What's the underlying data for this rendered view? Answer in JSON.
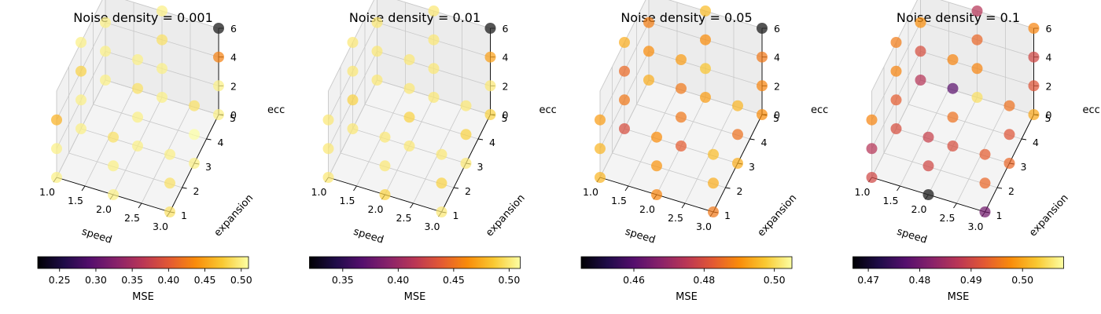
{
  "chart_data": [
    {
      "type": "scatter3d",
      "title": "Noise density = 0.001",
      "xlabel": "speed",
      "ylabel": "expansion",
      "zlabel": "ecc",
      "xlim": [
        1.0,
        3.0
      ],
      "ylim": [
        1,
        5
      ],
      "zlim": [
        0,
        6
      ],
      "x_ticks": [
        "1.0",
        "1.5",
        "2.0",
        "2.5",
        "3.0"
      ],
      "y_ticks": [
        "1",
        "2",
        "3",
        "4",
        "5"
      ],
      "z_ticks": [
        "0",
        "2",
        "4",
        "6"
      ],
      "colorbar": {
        "label": "MSE",
        "min": 0.22,
        "max": 0.51,
        "ticks": [
          "0.25",
          "0.30",
          "0.35",
          "0.40",
          "0.45",
          "0.50"
        ]
      },
      "points": [
        {
          "x": 1.0,
          "y": 1,
          "z": 0,
          "mse": 0.5
        },
        {
          "x": 1.0,
          "y": 1,
          "z": 2,
          "mse": 0.5
        },
        {
          "x": 1.0,
          "y": 1,
          "z": 4,
          "mse": 0.46
        },
        {
          "x": 1.0,
          "y": 3,
          "z": 0,
          "mse": 0.5
        },
        {
          "x": 1.0,
          "y": 3,
          "z": 2,
          "mse": 0.5
        },
        {
          "x": 1.0,
          "y": 3,
          "z": 4,
          "mse": 0.48
        },
        {
          "x": 1.0,
          "y": 3,
          "z": 6,
          "mse": 0.5
        },
        {
          "x": 1.0,
          "y": 5,
          "z": 0,
          "mse": 0.5
        },
        {
          "x": 1.0,
          "y": 5,
          "z": 2,
          "mse": 0.5
        },
        {
          "x": 1.0,
          "y": 5,
          "z": 4,
          "mse": 0.5
        },
        {
          "x": 1.0,
          "y": 5,
          "z": 6,
          "mse": 0.5
        },
        {
          "x": 2.0,
          "y": 1,
          "z": 0,
          "mse": 0.5
        },
        {
          "x": 2.0,
          "y": 1,
          "z": 2,
          "mse": 0.5
        },
        {
          "x": 2.0,
          "y": 1,
          "z": 4,
          "mse": 0.49
        },
        {
          "x": 2.0,
          "y": 3,
          "z": 0,
          "mse": 0.5
        },
        {
          "x": 2.0,
          "y": 3,
          "z": 2,
          "mse": 0.5
        },
        {
          "x": 2.0,
          "y": 3,
          "z": 4,
          "mse": 0.49
        },
        {
          "x": 2.0,
          "y": 3,
          "z": 6,
          "mse": 0.5
        },
        {
          "x": 2.0,
          "y": 5,
          "z": 0,
          "mse": 0.5
        },
        {
          "x": 2.0,
          "y": 5,
          "z": 2,
          "mse": 0.5
        },
        {
          "x": 2.0,
          "y": 5,
          "z": 4,
          "mse": 0.49
        },
        {
          "x": 2.0,
          "y": 5,
          "z": 6,
          "mse": 0.5
        },
        {
          "x": 3.0,
          "y": 1,
          "z": 0,
          "mse": 0.49
        },
        {
          "x": 3.0,
          "y": 1,
          "z": 2,
          "mse": 0.49
        },
        {
          "x": 3.0,
          "y": 1,
          "z": 4,
          "mse": 0.5
        },
        {
          "x": 3.0,
          "y": 3,
          "z": 0,
          "mse": 0.5
        },
        {
          "x": 3.0,
          "y": 3,
          "z": 2,
          "mse": 0.51
        },
        {
          "x": 3.0,
          "y": 3,
          "z": 4,
          "mse": 0.49
        },
        {
          "x": 3.0,
          "y": 5,
          "z": 0,
          "mse": 0.5
        },
        {
          "x": 3.0,
          "y": 5,
          "z": 2,
          "mse": 0.5
        },
        {
          "x": 3.0,
          "y": 5,
          "z": 4,
          "mse": 0.43
        },
        {
          "x": 3.0,
          "y": 5,
          "z": 6,
          "mse": 0.22
        }
      ]
    },
    {
      "type": "scatter3d",
      "title": "Noise density = 0.01",
      "xlabel": "speed",
      "ylabel": "expansion",
      "zlabel": "ecc",
      "xlim": [
        1.0,
        3.0
      ],
      "ylim": [
        1,
        5
      ],
      "zlim": [
        0,
        6
      ],
      "x_ticks": [
        "1.0",
        "1.5",
        "2.0",
        "2.5",
        "3.0"
      ],
      "y_ticks": [
        "1",
        "2",
        "3",
        "4",
        "5"
      ],
      "z_ticks": [
        "0",
        "2",
        "4",
        "6"
      ],
      "colorbar": {
        "label": "MSE",
        "min": 0.32,
        "max": 0.51,
        "ticks": [
          "0.35",
          "0.40",
          "0.45",
          "0.50"
        ]
      },
      "points": [
        {
          "x": 1.0,
          "y": 1,
          "z": 0,
          "mse": 0.5
        },
        {
          "x": 1.0,
          "y": 1,
          "z": 2,
          "mse": 0.5
        },
        {
          "x": 1.0,
          "y": 1,
          "z": 4,
          "mse": 0.5
        },
        {
          "x": 1.0,
          "y": 3,
          "z": 0,
          "mse": 0.5
        },
        {
          "x": 1.0,
          "y": 3,
          "z": 2,
          "mse": 0.49
        },
        {
          "x": 1.0,
          "y": 3,
          "z": 4,
          "mse": 0.5
        },
        {
          "x": 1.0,
          "y": 3,
          "z": 6,
          "mse": 0.5
        },
        {
          "x": 1.0,
          "y": 5,
          "z": 0,
          "mse": 0.5
        },
        {
          "x": 1.0,
          "y": 5,
          "z": 2,
          "mse": 0.5
        },
        {
          "x": 1.0,
          "y": 5,
          "z": 4,
          "mse": 0.5
        },
        {
          "x": 1.0,
          "y": 5,
          "z": 6,
          "mse": 0.5
        },
        {
          "x": 2.0,
          "y": 1,
          "z": 0,
          "mse": 0.49
        },
        {
          "x": 2.0,
          "y": 1,
          "z": 2,
          "mse": 0.5
        },
        {
          "x": 2.0,
          "y": 1,
          "z": 4,
          "mse": 0.5
        },
        {
          "x": 2.0,
          "y": 3,
          "z": 0,
          "mse": 0.5
        },
        {
          "x": 2.0,
          "y": 3,
          "z": 2,
          "mse": 0.49
        },
        {
          "x": 2.0,
          "y": 3,
          "z": 4,
          "mse": 0.5
        },
        {
          "x": 2.0,
          "y": 3,
          "z": 6,
          "mse": 0.5
        },
        {
          "x": 2.0,
          "y": 5,
          "z": 0,
          "mse": 0.5
        },
        {
          "x": 2.0,
          "y": 5,
          "z": 2,
          "mse": 0.5
        },
        {
          "x": 2.0,
          "y": 5,
          "z": 4,
          "mse": 0.5
        },
        {
          "x": 2.0,
          "y": 5,
          "z": 6,
          "mse": 0.5
        },
        {
          "x": 3.0,
          "y": 1,
          "z": 0,
          "mse": 0.5
        },
        {
          "x": 3.0,
          "y": 1,
          "z": 2,
          "mse": 0.49
        },
        {
          "x": 3.0,
          "y": 1,
          "z": 4,
          "mse": 0.5
        },
        {
          "x": 3.0,
          "y": 3,
          "z": 0,
          "mse": 0.5
        },
        {
          "x": 3.0,
          "y": 3,
          "z": 2,
          "mse": 0.49
        },
        {
          "x": 3.0,
          "y": 3,
          "z": 4,
          "mse": 0.5
        },
        {
          "x": 3.0,
          "y": 5,
          "z": 0,
          "mse": 0.49
        },
        {
          "x": 3.0,
          "y": 5,
          "z": 2,
          "mse": 0.5
        },
        {
          "x": 3.0,
          "y": 5,
          "z": 4,
          "mse": 0.47
        },
        {
          "x": 3.0,
          "y": 5,
          "z": 6,
          "mse": 0.32
        }
      ]
    },
    {
      "type": "scatter3d",
      "title": "Noise density = 0.05",
      "xlabel": "speed",
      "ylabel": "expansion",
      "zlabel": "ecc",
      "xlim": [
        1.0,
        3.0
      ],
      "ylim": [
        1,
        5
      ],
      "zlim": [
        0,
        6
      ],
      "x_ticks": [
        "1.0",
        "1.5",
        "2.0",
        "2.5",
        "3.0"
      ],
      "y_ticks": [
        "1",
        "2",
        "3",
        "4",
        "5"
      ],
      "z_ticks": [
        "0",
        "2",
        "4",
        "6"
      ],
      "colorbar": {
        "label": "MSE",
        "min": 0.445,
        "max": 0.505,
        "ticks": [
          "0.46",
          "0.48",
          "0.50"
        ]
      },
      "points": [
        {
          "x": 1.0,
          "y": 1,
          "z": 0,
          "mse": 0.495
        },
        {
          "x": 1.0,
          "y": 1,
          "z": 2,
          "mse": 0.495
        },
        {
          "x": 1.0,
          "y": 1,
          "z": 4,
          "mse": 0.492
        },
        {
          "x": 1.0,
          "y": 3,
          "z": 0,
          "mse": 0.48
        },
        {
          "x": 1.0,
          "y": 3,
          "z": 2,
          "mse": 0.487
        },
        {
          "x": 1.0,
          "y": 3,
          "z": 4,
          "mse": 0.485
        },
        {
          "x": 1.0,
          "y": 3,
          "z": 6,
          "mse": 0.494
        },
        {
          "x": 1.0,
          "y": 5,
          "z": 0,
          "mse": 0.494
        },
        {
          "x": 1.0,
          "y": 5,
          "z": 2,
          "mse": 0.49
        },
        {
          "x": 1.0,
          "y": 5,
          "z": 4,
          "mse": 0.488
        },
        {
          "x": 1.0,
          "y": 5,
          "z": 6,
          "mse": 0.496
        },
        {
          "x": 2.0,
          "y": 1,
          "z": 0,
          "mse": 0.489
        },
        {
          "x": 2.0,
          "y": 1,
          "z": 2,
          "mse": 0.491
        },
        {
          "x": 2.0,
          "y": 1,
          "z": 4,
          "mse": 0.49
        },
        {
          "x": 2.0,
          "y": 3,
          "z": 0,
          "mse": 0.483
        },
        {
          "x": 2.0,
          "y": 3,
          "z": 2,
          "mse": 0.487
        },
        {
          "x": 2.0,
          "y": 3,
          "z": 4,
          "mse": 0.487
        },
        {
          "x": 2.0,
          "y": 3,
          "z": 6,
          "mse": 0.492
        },
        {
          "x": 2.0,
          "y": 5,
          "z": 0,
          "mse": 0.492
        },
        {
          "x": 2.0,
          "y": 5,
          "z": 2,
          "mse": 0.497
        },
        {
          "x": 2.0,
          "y": 5,
          "z": 4,
          "mse": 0.49
        },
        {
          "x": 2.0,
          "y": 5,
          "z": 6,
          "mse": 0.496
        },
        {
          "x": 3.0,
          "y": 1,
          "z": 0,
          "mse": 0.487
        },
        {
          "x": 3.0,
          "y": 1,
          "z": 2,
          "mse": 0.494
        },
        {
          "x": 3.0,
          "y": 1,
          "z": 4,
          "mse": 0.496
        },
        {
          "x": 3.0,
          "y": 3,
          "z": 0,
          "mse": 0.494
        },
        {
          "x": 3.0,
          "y": 3,
          "z": 2,
          "mse": 0.486
        },
        {
          "x": 3.0,
          "y": 3,
          "z": 4,
          "mse": 0.495
        },
        {
          "x": 3.0,
          "y": 5,
          "z": 0,
          "mse": 0.49
        },
        {
          "x": 3.0,
          "y": 5,
          "z": 2,
          "mse": 0.489
        },
        {
          "x": 3.0,
          "y": 5,
          "z": 4,
          "mse": 0.487
        },
        {
          "x": 3.0,
          "y": 5,
          "z": 6,
          "mse": 0.445
        }
      ]
    },
    {
      "type": "scatter3d",
      "title": "Noise density = 0.1",
      "xlabel": "speed",
      "ylabel": "expansion",
      "zlabel": "ecc",
      "xlim": [
        1.0,
        3.0
      ],
      "ylim": [
        1,
        5
      ],
      "zlim": [
        0,
        6
      ],
      "x_ticks": [
        "1.0",
        "1.5",
        "2.0",
        "2.5",
        "3.0"
      ],
      "y_ticks": [
        "1",
        "2",
        "3",
        "4",
        "5"
      ],
      "z_ticks": [
        "0",
        "2",
        "4",
        "6"
      ],
      "colorbar": {
        "label": "MSE",
        "min": 0.467,
        "max": 0.508,
        "ticks": [
          "0.47",
          "0.48",
          "0.49",
          "0.50"
        ]
      },
      "points": [
        {
          "x": 1.0,
          "y": 1,
          "z": 0,
          "mse": 0.49
        },
        {
          "x": 1.0,
          "y": 1,
          "z": 2,
          "mse": 0.487
        },
        {
          "x": 1.0,
          "y": 1,
          "z": 4,
          "mse": 0.497
        },
        {
          "x": 1.0,
          "y": 3,
          "z": 0,
          "mse": 0.491
        },
        {
          "x": 1.0,
          "y": 3,
          "z": 2,
          "mse": 0.493
        },
        {
          "x": 1.0,
          "y": 3,
          "z": 4,
          "mse": 0.497
        },
        {
          "x": 1.0,
          "y": 3,
          "z": 6,
          "mse": 0.496
        },
        {
          "x": 1.0,
          "y": 5,
          "z": 0,
          "mse": 0.487
        },
        {
          "x": 1.0,
          "y": 5,
          "z": 2,
          "mse": 0.491
        },
        {
          "x": 1.0,
          "y": 5,
          "z": 4,
          "mse": 0.498
        },
        {
          "x": 1.0,
          "y": 5,
          "z": 6,
          "mse": 0.499
        },
        {
          "x": 2.0,
          "y": 1,
          "z": 0,
          "mse": 0.467
        },
        {
          "x": 2.0,
          "y": 1,
          "z": 2,
          "mse": 0.49
        },
        {
          "x": 2.0,
          "y": 1,
          "z": 4,
          "mse": 0.489
        },
        {
          "x": 2.0,
          "y": 3,
          "z": 0,
          "mse": 0.491
        },
        {
          "x": 2.0,
          "y": 3,
          "z": 2,
          "mse": 0.495
        },
        {
          "x": 2.0,
          "y": 3,
          "z": 4,
          "mse": 0.478
        },
        {
          "x": 2.0,
          "y": 3,
          "z": 6,
          "mse": 0.497
        },
        {
          "x": 2.0,
          "y": 5,
          "z": 0,
          "mse": 0.505
        },
        {
          "x": 2.0,
          "y": 5,
          "z": 2,
          "mse": 0.497
        },
        {
          "x": 2.0,
          "y": 5,
          "z": 4,
          "mse": 0.494
        },
        {
          "x": 2.0,
          "y": 5,
          "z": 6,
          "mse": 0.487
        },
        {
          "x": 3.0,
          "y": 1,
          "z": 0,
          "mse": 0.48
        },
        {
          "x": 3.0,
          "y": 1,
          "z": 2,
          "mse": 0.494
        },
        {
          "x": 3.0,
          "y": 1,
          "z": 4,
          "mse": 0.493
        },
        {
          "x": 3.0,
          "y": 3,
          "z": 0,
          "mse": 0.494
        },
        {
          "x": 3.0,
          "y": 3,
          "z": 2,
          "mse": 0.492
        },
        {
          "x": 3.0,
          "y": 3,
          "z": 4,
          "mse": 0.495
        },
        {
          "x": 3.0,
          "y": 5,
          "z": 0,
          "mse": 0.5
        },
        {
          "x": 3.0,
          "y": 5,
          "z": 2,
          "mse": 0.492
        },
        {
          "x": 3.0,
          "y": 5,
          "z": 4,
          "mse": 0.49
        },
        {
          "x": 3.0,
          "y": 5,
          "z": 6,
          "mse": 0.497
        }
      ]
    }
  ]
}
